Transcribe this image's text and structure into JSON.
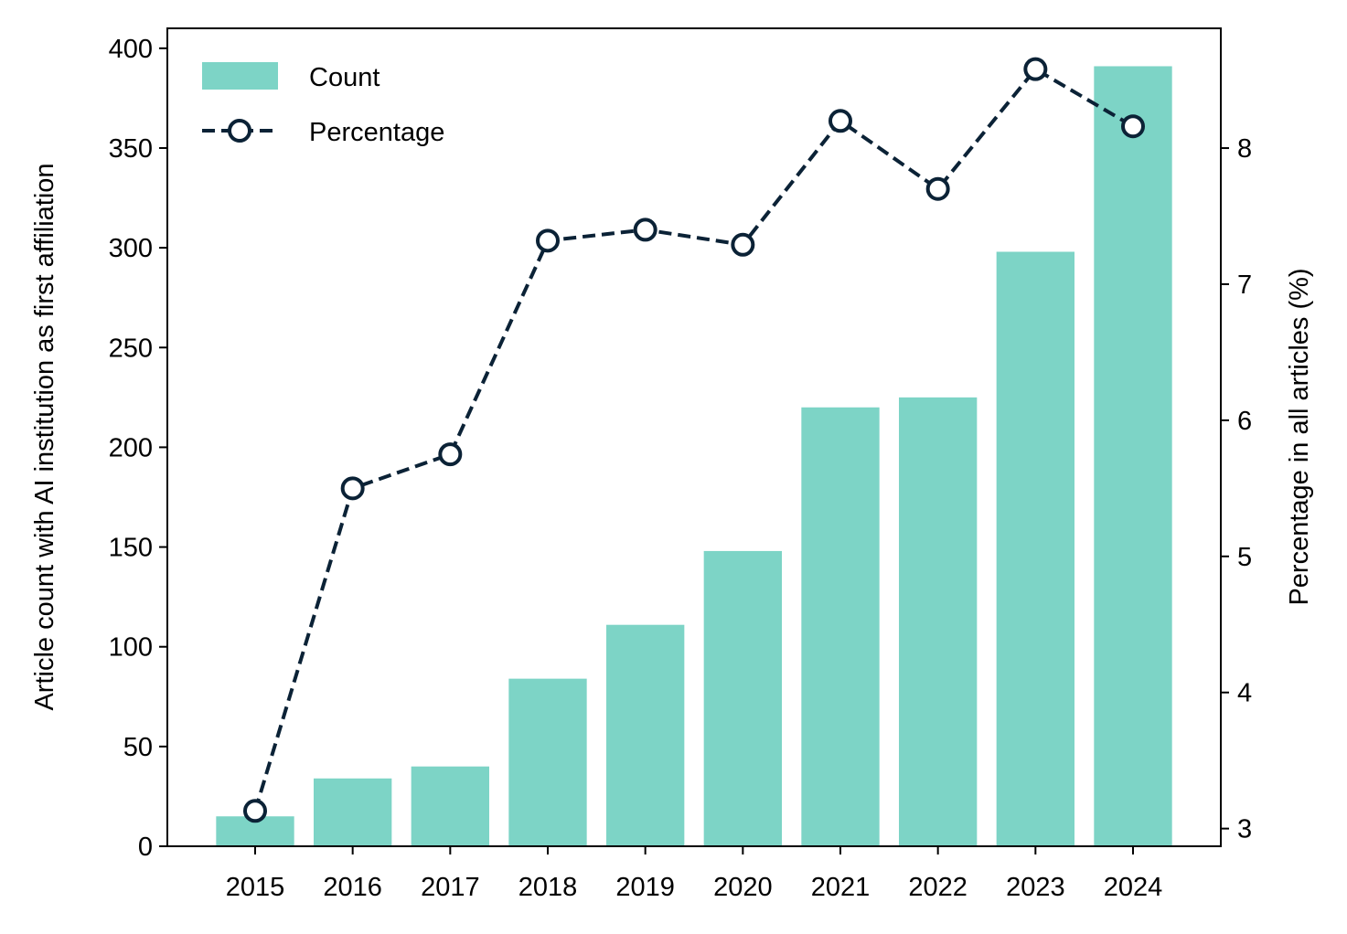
{
  "chart_data": {
    "type": "bar",
    "categories": [
      "2015",
      "2016",
      "2017",
      "2018",
      "2019",
      "2020",
      "2021",
      "2022",
      "2023",
      "2024"
    ],
    "series": [
      {
        "name": "Count",
        "type": "bar",
        "axis": "left",
        "color": "#7dd4c6",
        "values": [
          15,
          34,
          40,
          84,
          111,
          148,
          220,
          225,
          298,
          391
        ]
      },
      {
        "name": "Percentage",
        "type": "line",
        "axis": "right",
        "color": "#0b2236",
        "linestyle": "dashed",
        "marker": "open-circle",
        "values": [
          3.13,
          5.5,
          5.75,
          7.32,
          7.4,
          7.29,
          8.2,
          7.7,
          8.58,
          8.16
        ]
      }
    ],
    "ylabel_left": "Article count with AI institution as first affiliation",
    "ylabel_right": "Percentage in all articles (%)",
    "xlabel": "",
    "ylim_left": [
      0,
      410
    ],
    "yticks_left": [
      "0",
      "50",
      "100",
      "150",
      "200",
      "250",
      "300",
      "350",
      "400"
    ],
    "ylim_right": [
      2.87,
      8.88
    ],
    "yticks_right": [
      "3",
      "4",
      "5",
      "6",
      "7",
      "8"
    ],
    "legend": {
      "placement": "top-left",
      "entries": [
        "Count",
        "Percentage"
      ]
    },
    "grid": false
  }
}
